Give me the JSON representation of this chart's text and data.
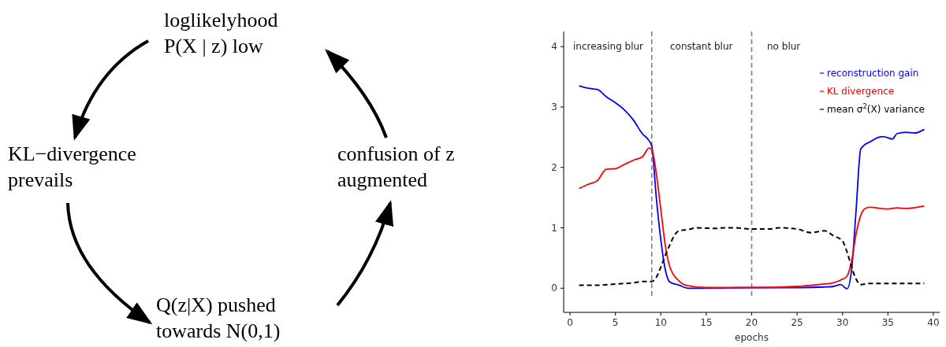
{
  "chart_data": [
    {
      "type": "other",
      "annotations": [
        "loglikelyhood\nP(X | z) low",
        "KL−divergence\nprevails",
        "Q(z|X)  pushed\ntowards N(0,1)",
        "confusion of z\naugmented"
      ]
    },
    {
      "type": "line",
      "xlabel": "epochs",
      "xlim": [
        -0.7,
        40.7
      ],
      "ylim": [
        -0.4,
        4.25
      ],
      "xticks": [
        0,
        5,
        10,
        15,
        20,
        25,
        30,
        35,
        40
      ],
      "yticks": [
        0,
        1,
        2,
        3,
        4
      ],
      "legend": "top right",
      "grid": false,
      "ref_lines": [
        {
          "axis": "x",
          "value": 9,
          "color": "#808080",
          "line_style": "dashed"
        },
        {
          "axis": "x",
          "value": 20,
          "color": "#808080",
          "line_style": "dashed"
        }
      ],
      "annotations": [
        "increasing blur",
        "constant blur",
        "no blur"
      ],
      "series": [
        {
          "name": "reconstruction gain",
          "color": "#0000ff",
          "line_style": "solid",
          "x": [
            1,
            2,
            3,
            4,
            5,
            6,
            7,
            8,
            8.5,
            9,
            9.5,
            10,
            10.5,
            11,
            12,
            13,
            15,
            20,
            25,
            28,
            29,
            29.8,
            30.5,
            31,
            31.5,
            32,
            32.5,
            33,
            34,
            34.5,
            35.5,
            36,
            37,
            38,
            39
          ],
          "values": [
            3.35,
            3.31,
            3.29,
            3.17,
            3.07,
            2.95,
            2.78,
            2.55,
            2.48,
            2.35,
            1.5,
            0.8,
            0.3,
            0.1,
            0.05,
            0.0,
            0.0,
            0.01,
            0.01,
            0.02,
            0.03,
            0.06,
            -0.01,
            0.3,
            1.3,
            2.3,
            2.38,
            2.42,
            2.5,
            2.51,
            2.47,
            2.56,
            2.58,
            2.57,
            2.63
          ]
        },
        {
          "name": "KL divergence",
          "color": "#ff0000",
          "line_style": "solid",
          "x": [
            1,
            2,
            3,
            4,
            5,
            6,
            7,
            8,
            8.7,
            9,
            9.5,
            10,
            10.5,
            11,
            12,
            13,
            15,
            20,
            25,
            28,
            29,
            30,
            30.5,
            31,
            31.5,
            32,
            32.5,
            33,
            35,
            36,
            37,
            39
          ],
          "values": [
            1.65,
            1.72,
            1.78,
            1.97,
            1.98,
            2.05,
            2.12,
            2.18,
            2.32,
            2.3,
            1.9,
            1.3,
            0.7,
            0.35,
            0.12,
            0.04,
            0.01,
            0.01,
            0.03,
            0.07,
            0.09,
            0.15,
            0.2,
            0.45,
            0.9,
            1.2,
            1.32,
            1.34,
            1.31,
            1.33,
            1.32,
            1.36
          ]
        },
        {
          "name": "mean σ$^{2}$(X) variance",
          "color": "#000000",
          "line_style": "dashed",
          "x": [
            1,
            3,
            5,
            7,
            8,
            9,
            9.5,
            10,
            10.5,
            11,
            11.5,
            12,
            13,
            14,
            16,
            17,
            18,
            20,
            22,
            23,
            25,
            26.5,
            28,
            29,
            30,
            30.5,
            31,
            31.5,
            32,
            33,
            36,
            39
          ],
          "values": [
            0.05,
            0.05,
            0.07,
            0.09,
            0.11,
            0.11,
            0.18,
            0.35,
            0.55,
            0.72,
            0.88,
            0.95,
            0.97,
            1.0,
            0.99,
            1.0,
            1.0,
            0.98,
            0.98,
            1.0,
            0.98,
            0.92,
            0.95,
            0.87,
            0.78,
            0.6,
            0.35,
            0.15,
            0.06,
            0.08,
            0.08,
            0.08
          ]
        }
      ]
    }
  ]
}
